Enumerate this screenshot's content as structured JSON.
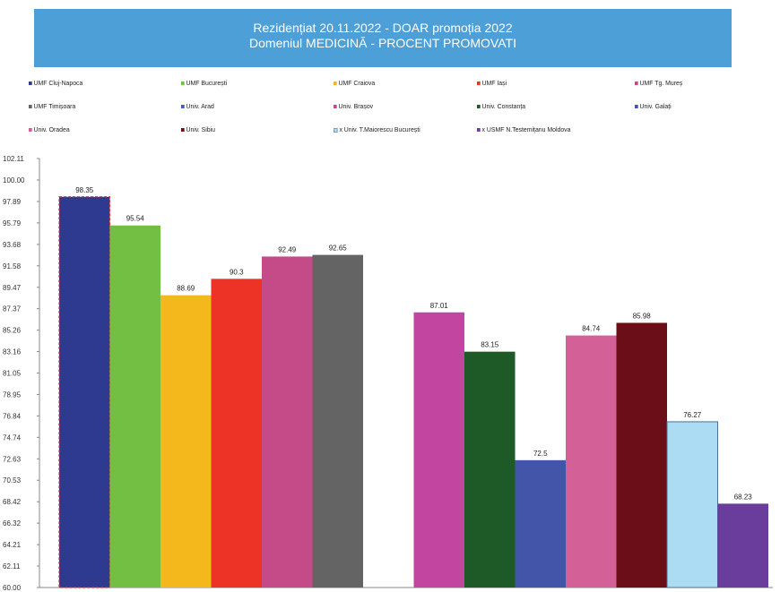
{
  "chart_data": {
    "type": "bar",
    "title": "Rezidențiat 20.11.2022 - DOAR promoția 2022",
    "subtitle": "Domeniul MEDICINĂ  -  PROCENT PROMOVATI",
    "xlabel": "",
    "ylabel": "",
    "ylim": [
      60.0,
      102.11
    ],
    "y_ticks": [
      "102.11",
      "100.00",
      "97.89",
      "95.79",
      "93.68",
      "91.58",
      "89.47",
      "87.37",
      "85.26",
      "83.16",
      "81.05",
      "78.95",
      "76.84",
      "74.74",
      "72.63",
      "70.53",
      "68.42",
      "66.32",
      "64.21",
      "62.11",
      "60.00"
    ],
    "grid": false,
    "legend_position": "top",
    "series": [
      {
        "name": "UMF Cluj-Napoca",
        "value": 98.35,
        "label": "98.35",
        "color": "#2e3a8f",
        "highlight": true
      },
      {
        "name": "UMF București",
        "value": 95.54,
        "label": "95.54",
        "color": "#73bf44"
      },
      {
        "name": "UMF Craiova",
        "value": 88.69,
        "label": "88.69",
        "color": "#f4b81c"
      },
      {
        "name": "UMF Iași",
        "value": 90.3,
        "label": "90.3",
        "color": "#ec3326"
      },
      {
        "name": "UMF Tg. Mureș",
        "value": 92.49,
        "label": "92.49",
        "color": "#c44a88"
      },
      {
        "name": "UMF Timișoara",
        "value": 92.65,
        "label": "92.65",
        "color": "#646464"
      },
      {
        "name": "Univ. Arad",
        "value": null,
        "label": "",
        "color": "#3a5fae"
      },
      {
        "name": "Univ. Brașov",
        "value": 87.01,
        "label": "87.01",
        "color": "#c246a0"
      },
      {
        "name": "Univ. Constanța",
        "value": 83.15,
        "label": "83.15",
        "color": "#1d5a27"
      },
      {
        "name": "Univ. Galați",
        "value": 72.5,
        "label": "72.5",
        "color": "#4355a8"
      },
      {
        "name": "Univ. Oradea",
        "value": 84.74,
        "label": "84.74",
        "color": "#d36097"
      },
      {
        "name": "Univ. Sibiu",
        "value": 85.98,
        "label": "85.98",
        "color": "#6b0e18"
      },
      {
        "name": "x Univ. T.Maiorescu București",
        "value": 76.27,
        "label": "76.27",
        "color": "#acdcf4",
        "outline": true
      },
      {
        "name": "x USMF N.Testemițanu Moldova",
        "value": 68.23,
        "label": "68.23",
        "color": "#6a3c9c"
      }
    ]
  }
}
